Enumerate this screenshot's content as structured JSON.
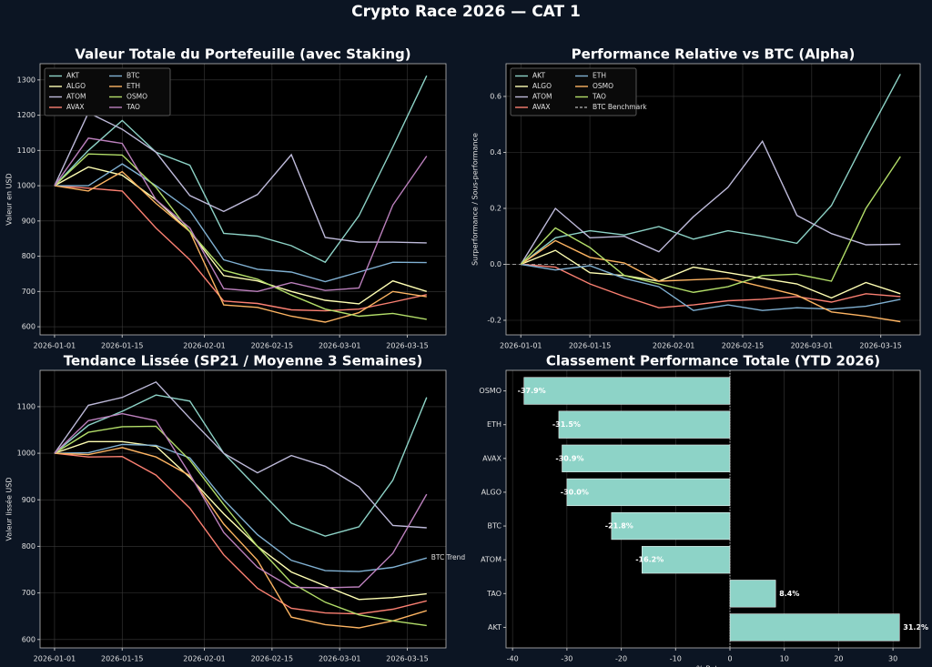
{
  "title": "Crypto Race 2026 — CAT 1",
  "chart_data": [
    {
      "type": "line",
      "title": "Valeur Totale du Portefeuille (avec Staking)",
      "ylabel": "Valeur en USD",
      "x": [
        "2026-01-01",
        "2026-01-08",
        "2026-01-15",
        "2026-01-22",
        "2026-01-29",
        "2026-02-05",
        "2026-02-12",
        "2026-02-19",
        "2026-02-26",
        "2026-03-05",
        "2026-03-12",
        "2026-03-19"
      ],
      "xlim": [
        "2025-12-29",
        "2026-03-23"
      ],
      "xticks": [
        "2026-01-01",
        "2026-01-15",
        "2026-02-01",
        "2026-02-15",
        "2026-03-01",
        "2026-03-15"
      ],
      "ylim": [
        577,
        1346
      ],
      "yticks": [
        600,
        700,
        800,
        900,
        1000,
        1100,
        1200,
        1300
      ],
      "grid": true,
      "legend": "upper left",
      "legend_ncol": 2,
      "series": [
        {
          "name": "AKT",
          "color": "#8dd3c7",
          "values": [
            1000,
            1100,
            1185,
            1095,
            1058,
            865,
            857,
            830,
            783,
            915,
            1110,
            1312
          ]
        },
        {
          "name": "ALGO",
          "color": "#ffffb3",
          "values": [
            1000,
            1053,
            1030,
            960,
            870,
            745,
            730,
            700,
            675,
            665,
            730,
            700
          ]
        },
        {
          "name": "ATOM",
          "color": "#bebada",
          "values": [
            1000,
            1207,
            1160,
            1095,
            972,
            927,
            975,
            1088,
            853,
            840,
            840,
            838
          ]
        },
        {
          "name": "AVAX",
          "color": "#fb8072",
          "values": [
            1000,
            993,
            985,
            880,
            790,
            673,
            666,
            648,
            645,
            650,
            670,
            691
          ]
        },
        {
          "name": "BTC",
          "color": "#80b1d3",
          "values": [
            1000,
            1000,
            1062,
            1000,
            930,
            790,
            763,
            755,
            728,
            755,
            783,
            782
          ]
        },
        {
          "name": "ETH",
          "color": "#fdb462",
          "values": [
            1000,
            985,
            1040,
            950,
            870,
            662,
            655,
            630,
            613,
            640,
            700,
            685
          ]
        },
        {
          "name": "OSMO",
          "color": "#b3de69",
          "values": [
            1000,
            1090,
            1087,
            995,
            870,
            760,
            735,
            690,
            650,
            630,
            638,
            621
          ]
        },
        {
          "name": "TAO",
          "color": "#bc80bd",
          "values": [
            1000,
            1135,
            1120,
            960,
            880,
            708,
            700,
            725,
            703,
            710,
            945,
            1084
          ]
        }
      ]
    },
    {
      "type": "line",
      "title": "Performance Relative vs BTC (Alpha)",
      "ylabel": "Surperformance / Sous-performance",
      "x": [
        "2026-01-01",
        "2026-01-08",
        "2026-01-15",
        "2026-01-22",
        "2026-01-29",
        "2026-02-05",
        "2026-02-12",
        "2026-02-19",
        "2026-02-26",
        "2026-03-05",
        "2026-03-12",
        "2026-03-19"
      ],
      "xlim": [
        "2025-12-29",
        "2026-03-23"
      ],
      "xticks": [
        "2026-01-01",
        "2026-01-15",
        "2026-02-01",
        "2026-02-15",
        "2026-03-01",
        "2026-03-15"
      ],
      "ylim": [
        -0.252,
        0.717
      ],
      "yticks": [
        -0.2,
        {
          "value": 0,
          "label": "0.0"
        },
        0.2,
        0.4,
        0.6
      ],
      "grid": true,
      "legend": "upper left",
      "legend_ncol": 2,
      "series": [
        {
          "name": "AKT",
          "color": "#8dd3c7",
          "values": [
            0,
            0.095,
            0.12,
            0.105,
            0.135,
            0.09,
            0.12,
            0.1,
            0.075,
            0.21,
            0.45,
            0.68
          ]
        },
        {
          "name": "ALGO",
          "color": "#ffffb3",
          "values": [
            0,
            0.05,
            -0.03,
            -0.04,
            -0.06,
            -0.01,
            -0.03,
            -0.05,
            -0.07,
            -0.12,
            -0.065,
            -0.105
          ]
        },
        {
          "name": "ATOM",
          "color": "#bebada",
          "values": [
            0,
            0.2,
            0.095,
            0.1,
            0.045,
            0.17,
            0.275,
            0.44,
            0.175,
            0.11,
            0.07,
            0.072
          ]
        },
        {
          "name": "AVAX",
          "color": "#fb8072",
          "values": [
            0,
            -0.01,
            -0.07,
            -0.115,
            -0.155,
            -0.145,
            -0.13,
            -0.125,
            -0.115,
            -0.135,
            -0.105,
            -0.115
          ]
        },
        {
          "name": "ETH",
          "color": "#80b1d3",
          "values": [
            0,
            -0.02,
            -0.005,
            -0.05,
            -0.08,
            -0.165,
            -0.145,
            -0.165,
            -0.155,
            -0.16,
            -0.15,
            -0.125
          ]
        },
        {
          "name": "OSMO",
          "color": "#fdb462",
          "values": [
            0,
            0.085,
            0.025,
            0.005,
            -0.06,
            -0.055,
            -0.05,
            -0.08,
            -0.11,
            -0.17,
            -0.185,
            -0.205
          ]
        },
        {
          "name": "TAO",
          "color": "#b3de69",
          "values": [
            0,
            0.13,
            0.06,
            -0.04,
            -0.07,
            -0.1,
            -0.08,
            -0.04,
            -0.035,
            -0.06,
            0.2,
            0.385
          ]
        }
      ],
      "reference_line": {
        "name": "BTC Benchmark",
        "value": 0,
        "color": "#999999",
        "dashed": true
      }
    },
    {
      "type": "line",
      "title": "Tendance Lissée (SP21 / Moyenne 3 Semaines)",
      "ylabel": "Valeur lissée USD",
      "x": [
        "2026-01-01",
        "2026-01-08",
        "2026-01-15",
        "2026-01-22",
        "2026-01-29",
        "2026-02-05",
        "2026-02-12",
        "2026-02-19",
        "2026-02-26",
        "2026-03-05",
        "2026-03-12",
        "2026-03-19"
      ],
      "xlim": [
        "2025-12-29",
        "2026-03-23"
      ],
      "xticks": [
        "2026-01-01",
        "2026-01-15",
        "2026-02-01",
        "2026-02-15",
        "2026-03-01",
        "2026-03-15"
      ],
      "ylim": [
        582,
        1178
      ],
      "yticks": [
        600,
        700,
        800,
        900,
        1000,
        1100
      ],
      "grid": true,
      "series": [
        {
          "name": "AKT",
          "color": "#8dd3c7",
          "values": [
            1000,
            1060,
            1090,
            1125,
            1112,
            1000,
            925,
            850,
            822,
            842,
            942,
            1120
          ]
        },
        {
          "name": "ALGO",
          "color": "#ffffb3",
          "values": [
            1000,
            1025,
            1025,
            1015,
            948,
            870,
            800,
            745,
            715,
            686,
            690,
            698
          ]
        },
        {
          "name": "ATOM",
          "color": "#bebada",
          "values": [
            1000,
            1103,
            1120,
            1153,
            1075,
            1000,
            958,
            995,
            972,
            928,
            845,
            840
          ]
        },
        {
          "name": "AVAX",
          "color": "#fb8072",
          "values": [
            1000,
            992,
            993,
            953,
            882,
            782,
            710,
            667,
            657,
            655,
            665,
            683
          ]
        },
        {
          "name": "BTC",
          "color": "#80b1d3",
          "values": [
            1000,
            1001,
            1019,
            1017,
            990,
            900,
            825,
            770,
            748,
            746,
            755,
            775
          ],
          "annotation": "BTC Trend"
        },
        {
          "name": "ETH",
          "color": "#fdb462",
          "values": [
            1000,
            997,
            1012,
            992,
            952,
            848,
            770,
            648,
            632,
            625,
            640,
            662
          ]
        },
        {
          "name": "OSMO",
          "color": "#b3de69",
          "values": [
            1000,
            1045,
            1057,
            1058,
            985,
            890,
            800,
            722,
            680,
            653,
            640,
            630
          ]
        },
        {
          "name": "TAO",
          "color": "#bc80bd",
          "values": [
            1000,
            1070,
            1085,
            1070,
            955,
            830,
            755,
            712,
            711,
            713,
            785,
            912
          ]
        }
      ]
    },
    {
      "type": "hbar",
      "title": "Classement Performance Totale (YTD 2026)",
      "xlabel": "% Retour",
      "categories": [
        "OSMO",
        "ETH",
        "AVAX",
        "ALGO",
        "BTC",
        "ATOM",
        "TAO",
        "AKT"
      ],
      "values": [
        -37.9,
        -31.5,
        -30.9,
        -30.0,
        -21.8,
        -16.2,
        8.4,
        31.2
      ],
      "value_labels": [
        "-37.9%",
        "-31.5%",
        "-30.9%",
        "-30.0%",
        "-21.8%",
        "-16.2%",
        "8.4%",
        "31.2%"
      ],
      "color": "#8dd3c7",
      "xlim": [
        -41.2,
        35
      ],
      "xticks": [
        -40,
        -30,
        -20,
        -10,
        0,
        10,
        20,
        30
      ],
      "grid": true
    }
  ]
}
